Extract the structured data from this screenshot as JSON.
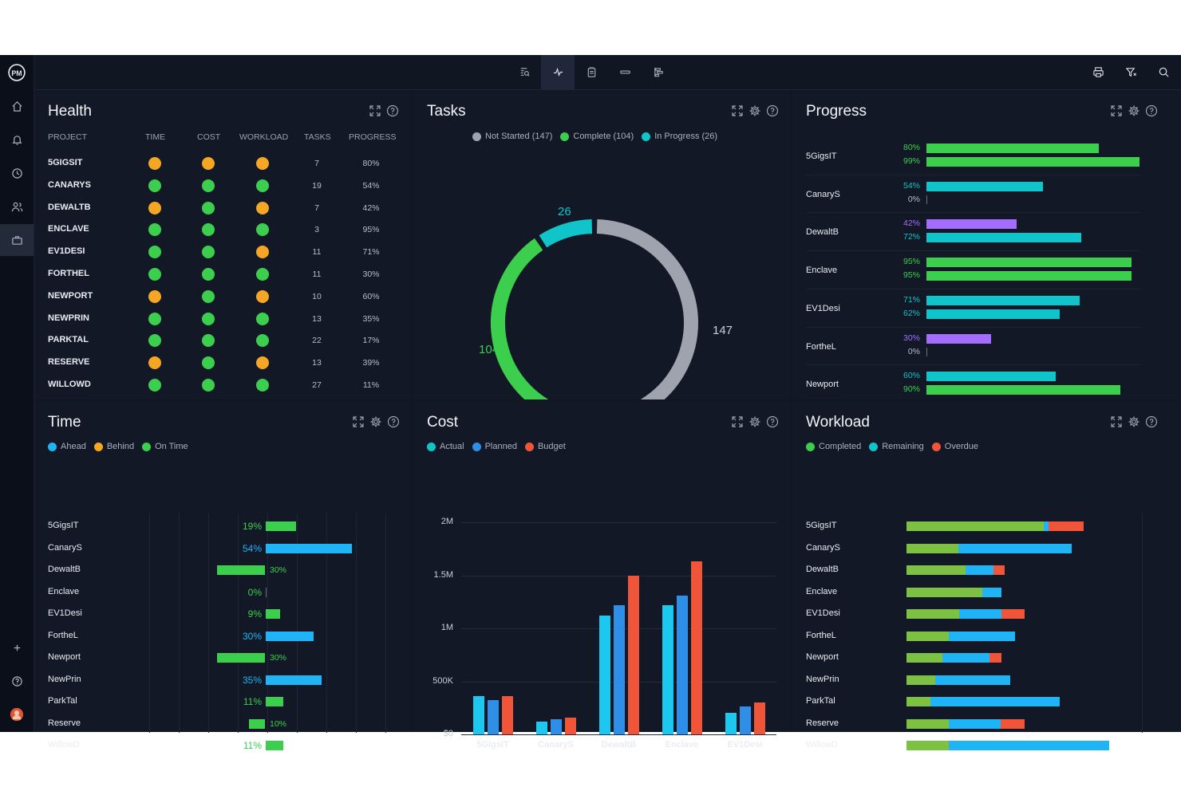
{
  "app": {
    "logo": "PM"
  },
  "sidebar": {
    "items": [
      {
        "icon": "home-icon"
      },
      {
        "icon": "bell-icon"
      },
      {
        "icon": "clock-icon"
      },
      {
        "icon": "users-icon"
      },
      {
        "icon": "briefcase-icon"
      }
    ],
    "bottom": [
      {
        "icon": "plus-icon"
      },
      {
        "icon": "help-icon"
      },
      {
        "icon": "avatar"
      }
    ]
  },
  "toolbar": {
    "views": [
      "search-view-icon",
      "dashboard-icon",
      "clipboard-icon",
      "list-icon",
      "gantt-icon"
    ],
    "right": [
      "print-icon",
      "filter-icon",
      "search-icon"
    ]
  },
  "colors": {
    "orange": "#f5a623",
    "green": "#3ccf4e",
    "teal": "#0fc5c9",
    "gray": "#9ea3ad",
    "purple": "#a56dff",
    "blue": "#1fb4f5",
    "bluePlanned": "#2f8fe8",
    "red": "#f0553a",
    "lime": "#7cc142"
  },
  "health": {
    "title": "Health",
    "columns": [
      "PROJECT",
      "TIME",
      "COST",
      "WORKLOAD",
      "TASKS",
      "PROGRESS"
    ],
    "rows": [
      {
        "project": "5GIGSIT",
        "time": "orange",
        "cost": "orange",
        "workload": "orange",
        "tasks": "7",
        "progress": "80%"
      },
      {
        "project": "CANARYS",
        "time": "green",
        "cost": "green",
        "workload": "green",
        "tasks": "19",
        "progress": "54%"
      },
      {
        "project": "DEWALTB",
        "time": "orange",
        "cost": "green",
        "workload": "orange",
        "tasks": "7",
        "progress": "42%"
      },
      {
        "project": "ENCLAVE",
        "time": "green",
        "cost": "green",
        "workload": "green",
        "tasks": "3",
        "progress": "95%"
      },
      {
        "project": "EV1DESI",
        "time": "green",
        "cost": "green",
        "workload": "orange",
        "tasks": "11",
        "progress": "71%"
      },
      {
        "project": "FORTHEL",
        "time": "green",
        "cost": "green",
        "workload": "green",
        "tasks": "11",
        "progress": "30%"
      },
      {
        "project": "NEWPORT",
        "time": "orange",
        "cost": "green",
        "workload": "orange",
        "tasks": "10",
        "progress": "60%"
      },
      {
        "project": "NEWPRIN",
        "time": "green",
        "cost": "green",
        "workload": "green",
        "tasks": "13",
        "progress": "35%"
      },
      {
        "project": "PARKTAL",
        "time": "green",
        "cost": "green",
        "workload": "green",
        "tasks": "22",
        "progress": "17%"
      },
      {
        "project": "RESERVE",
        "time": "orange",
        "cost": "green",
        "workload": "orange",
        "tasks": "13",
        "progress": "39%"
      },
      {
        "project": "WILLOWD",
        "time": "green",
        "cost": "green",
        "workload": "green",
        "tasks": "27",
        "progress": "11%"
      }
    ]
  },
  "tasks": {
    "title": "Tasks",
    "legend": [
      {
        "label": "Not Started (147)",
        "color": "#9ea3ad"
      },
      {
        "label": "Complete (104)",
        "color": "#3ccf4e"
      },
      {
        "label": "In Progress (26)",
        "color": "#0fc5c9"
      }
    ],
    "segments": [
      {
        "name": "Not Started",
        "value": 147,
        "label": "147",
        "color": "#9ea3ad"
      },
      {
        "name": "Complete",
        "value": 104,
        "label": "104",
        "color": "#3ccf4e"
      },
      {
        "name": "In Progress",
        "value": 26,
        "label": "26",
        "color": "#0fc5c9"
      }
    ]
  },
  "progress": {
    "title": "Progress",
    "rows": [
      {
        "name": "5GigsIT",
        "a": {
          "label": "80%",
          "value": 80,
          "color": "green"
        },
        "b": {
          "label": "99%",
          "value": 99,
          "color": "green"
        }
      },
      {
        "name": "CanaryS",
        "a": {
          "label": "54%",
          "value": 54,
          "color": "teal"
        },
        "b": {
          "label": "0%",
          "value": 0,
          "color": "gray"
        }
      },
      {
        "name": "DewaltB",
        "a": {
          "label": "42%",
          "value": 42,
          "color": "purple"
        },
        "b": {
          "label": "72%",
          "value": 72,
          "color": "teal"
        }
      },
      {
        "name": "Enclave",
        "a": {
          "label": "95%",
          "value": 95,
          "color": "green"
        },
        "b": {
          "label": "95%",
          "value": 95,
          "color": "green"
        }
      },
      {
        "name": "EV1Desi",
        "a": {
          "label": "71%",
          "value": 71,
          "color": "teal"
        },
        "b": {
          "label": "62%",
          "value": 62,
          "color": "teal"
        }
      },
      {
        "name": "ForthеL",
        "a": {
          "label": "30%",
          "value": 30,
          "color": "purple"
        },
        "b": {
          "label": "0%",
          "value": 0,
          "color": "gray"
        }
      },
      {
        "name": "Newport",
        "a": {
          "label": "60%",
          "value": 60,
          "color": "teal"
        },
        "b": {
          "label": "90%",
          "value": 90,
          "color": "green"
        }
      }
    ]
  },
  "time": {
    "title": "Time",
    "legend": [
      {
        "label": "Ahead",
        "color": "#1fb4f5"
      },
      {
        "label": "Behind",
        "color": "#f5a623"
      },
      {
        "label": "On Time",
        "color": "#3ccf4e"
      }
    ],
    "rows": [
      {
        "name": "5GigsIT",
        "label": "19%",
        "value": 19,
        "status": "ontime"
      },
      {
        "name": "CanaryS",
        "label": "54%",
        "value": 54,
        "status": "ahead"
      },
      {
        "name": "DewaltB",
        "label": "30%",
        "value": -30,
        "status": "ontime"
      },
      {
        "name": "Enclave",
        "label": "0%",
        "value": 0,
        "status": "ontime"
      },
      {
        "name": "EV1Desi",
        "label": "9%",
        "value": 9,
        "status": "ontime"
      },
      {
        "name": "FortheL",
        "label": "30%",
        "value": 30,
        "status": "ahead"
      },
      {
        "name": "Newport",
        "label": "30%",
        "value": -30,
        "status": "ontime"
      },
      {
        "name": "NewPrin",
        "label": "35%",
        "value": 35,
        "status": "ahead"
      },
      {
        "name": "ParkTal",
        "label": "11%",
        "value": 11,
        "status": "ontime"
      },
      {
        "name": "Reserve",
        "label": "10%",
        "value": -10,
        "status": "ontime"
      },
      {
        "name": "WillowD",
        "label": "11%",
        "value": 11,
        "status": "ontime"
      }
    ]
  },
  "cost": {
    "title": "Cost",
    "legend": [
      {
        "label": "Actual",
        "color": "#0fc5c9"
      },
      {
        "label": "Planned",
        "color": "#2f8fe8"
      },
      {
        "label": "Budget",
        "color": "#f0553a"
      }
    ]
  },
  "chart_data": {
    "type": "bar",
    "categories": [
      "5GigsIT",
      "CanaryS",
      "DewaltB",
      "Enclave",
      "EV1Desi"
    ],
    "series": [
      {
        "name": "Actual",
        "values": [
          360000,
          120000,
          1120000,
          1220000,
          200000
        ]
      },
      {
        "name": "Planned",
        "values": [
          320000,
          140000,
          1220000,
          1310000,
          260000
        ]
      },
      {
        "name": "Budget",
        "values": [
          360000,
          160000,
          1500000,
          1630000,
          300000
        ]
      }
    ],
    "yticks": [
      "$0",
      "500K",
      "1M",
      "1.5M",
      "2M"
    ],
    "ylim": [
      0,
      2000000
    ]
  },
  "workload": {
    "title": "Workload",
    "legend": [
      {
        "label": "Completed",
        "color": "#3ccf4e"
      },
      {
        "label": "Remaining",
        "color": "#0fc5c9"
      },
      {
        "label": "Overdue",
        "color": "#f0553a"
      }
    ],
    "rows": [
      {
        "name": "5GigsIT",
        "completed": 172,
        "remaining": 6,
        "overdue": 44
      },
      {
        "name": "CanaryS",
        "completed": 65,
        "remaining": 142,
        "overdue": 0
      },
      {
        "name": "DewaltB",
        "completed": 74,
        "remaining": 35,
        "overdue": 14
      },
      {
        "name": "Enclave",
        "completed": 95,
        "remaining": 24,
        "overdue": 0
      },
      {
        "name": "EV1Desi",
        "completed": 66,
        "remaining": 53,
        "overdue": 29
      },
      {
        "name": "FortheL",
        "completed": 53,
        "remaining": 83,
        "overdue": 0
      },
      {
        "name": "Newport",
        "completed": 45,
        "remaining": 59,
        "overdue": 15
      },
      {
        "name": "NewPrin",
        "completed": 36,
        "remaining": 94,
        "overdue": 0
      },
      {
        "name": "ParkTal",
        "completed": 30,
        "remaining": 162,
        "overdue": 0
      },
      {
        "name": "Reserve",
        "completed": 53,
        "remaining": 65,
        "overdue": 30
      },
      {
        "name": "WillowD",
        "completed": 53,
        "remaining": 201,
        "overdue": 0
      }
    ]
  }
}
